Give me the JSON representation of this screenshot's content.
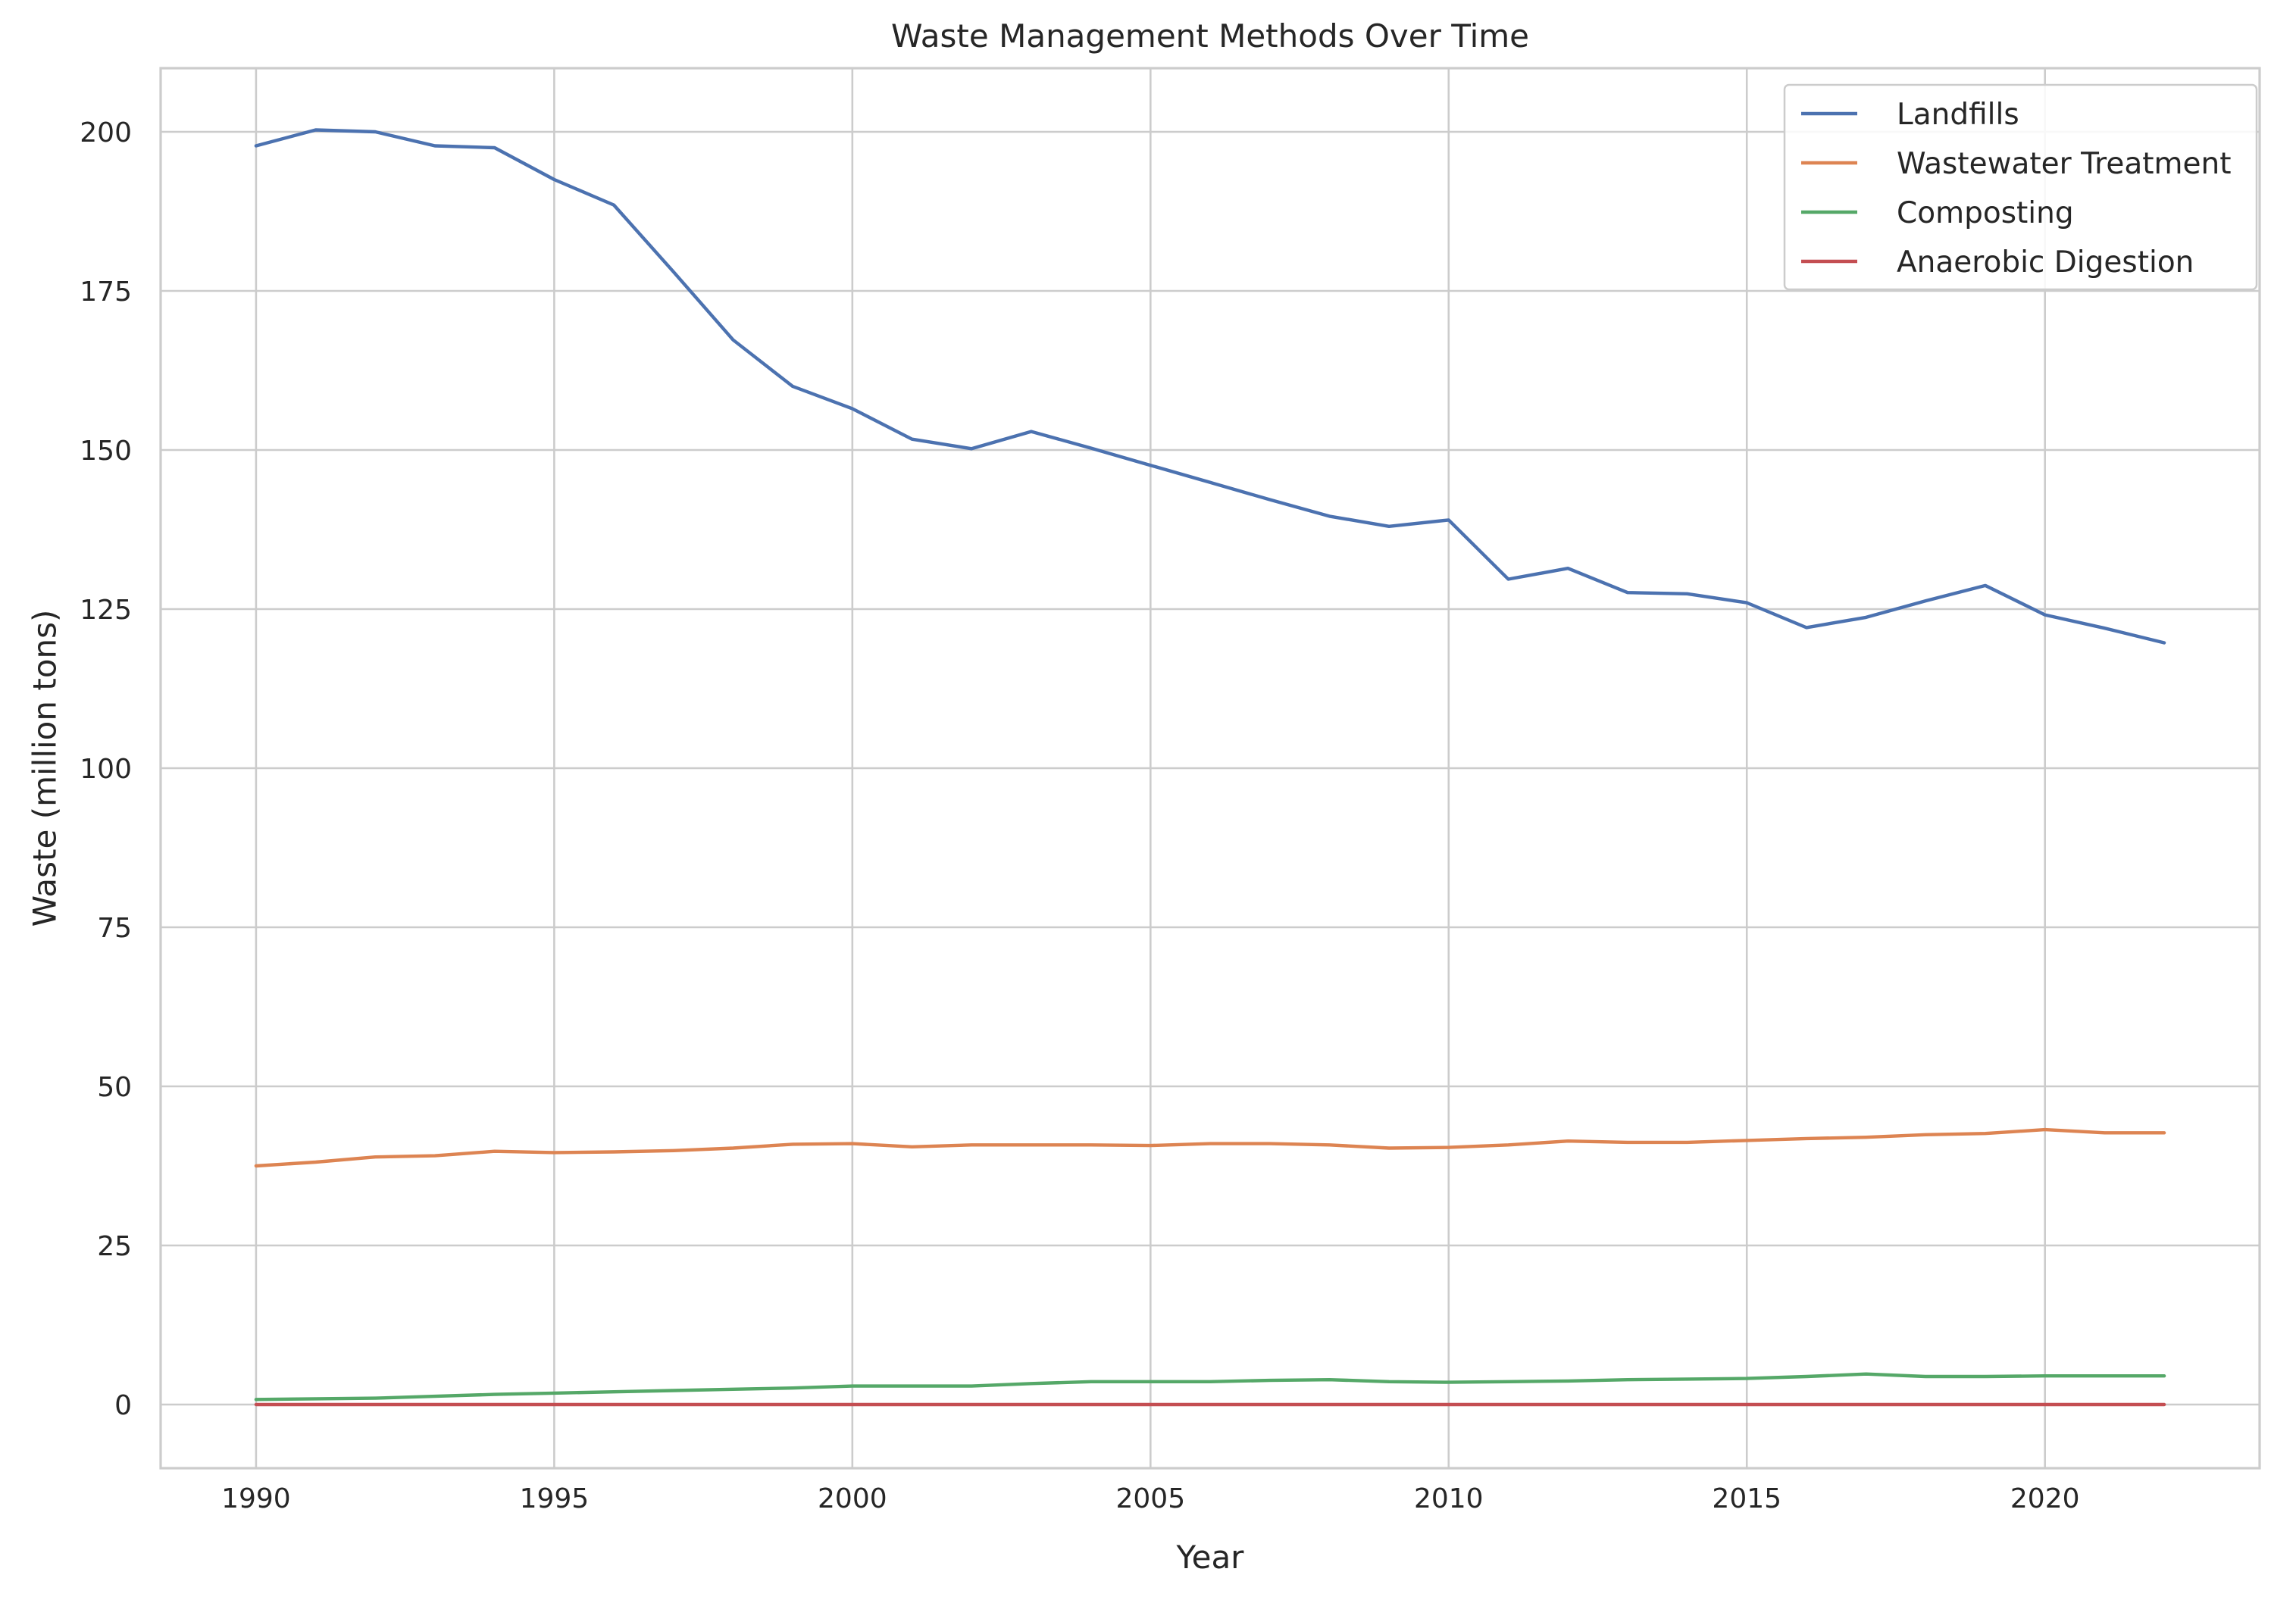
{
  "chart_data": {
    "type": "line",
    "title": "Waste Management Methods Over Time",
    "xlabel": "Year",
    "ylabel": "Waste (million tons)",
    "xlim": [
      1988.4,
      2023.6
    ],
    "ylim": [
      -10,
      210
    ],
    "xticks": [
      1990,
      1995,
      2000,
      2005,
      2010,
      2015,
      2020
    ],
    "yticks": [
      0,
      25,
      50,
      75,
      100,
      125,
      150,
      175,
      200
    ],
    "grid": true,
    "legend_position": "top-right",
    "x": [
      1990,
      1991,
      1992,
      1993,
      1994,
      1995,
      1996,
      1997,
      1998,
      1999,
      2000,
      2001,
      2002,
      2003,
      2004,
      2005,
      2006,
      2007,
      2008,
      2009,
      2010,
      2011,
      2012,
      2013,
      2014,
      2015,
      2016,
      2017,
      2018,
      2019,
      2020,
      2021,
      2022
    ],
    "series": [
      {
        "name": "Landfills",
        "color": "#4c72b0",
        "values": [
          197.8,
          200.3,
          200.0,
          197.8,
          197.5,
          192.5,
          188.5,
          178.0,
          167.3,
          160.0,
          156.5,
          151.7,
          150.2,
          152.9,
          150.3,
          147.6,
          144.9,
          142.2,
          139.6,
          138.0,
          139.0,
          129.7,
          131.4,
          127.6,
          127.4,
          126.0,
          122.1,
          123.7,
          126.3,
          128.7,
          124.1,
          122.0,
          119.7
        ]
      },
      {
        "name": "Wastewater Treatment",
        "color": "#dd8452",
        "values": [
          37.5,
          38.1,
          38.9,
          39.1,
          39.8,
          39.6,
          39.7,
          39.9,
          40.3,
          40.9,
          41.0,
          40.5,
          40.8,
          40.8,
          40.8,
          40.7,
          41.0,
          41.0,
          40.8,
          40.3,
          40.4,
          40.8,
          41.4,
          41.2,
          41.2,
          41.5,
          41.8,
          42.0,
          42.4,
          42.6,
          43.2,
          42.7,
          42.7
        ]
      },
      {
        "name": "Composting",
        "color": "#55a868",
        "values": [
          0.8,
          0.9,
          1.0,
          1.3,
          1.6,
          1.8,
          2.0,
          2.2,
          2.4,
          2.6,
          2.9,
          2.9,
          2.9,
          3.3,
          3.6,
          3.6,
          3.6,
          3.8,
          3.9,
          3.6,
          3.5,
          3.6,
          3.7,
          3.9,
          4.0,
          4.1,
          4.4,
          4.8,
          4.4,
          4.4,
          4.5,
          4.5,
          4.5
        ]
      },
      {
        "name": "Anaerobic Digestion",
        "color": "#c44e52",
        "values": [
          0.0,
          0.0,
          0.0,
          0.0,
          0.0,
          0.0,
          0.0,
          0.0,
          0.0,
          0.0,
          0.0,
          0.0,
          0.0,
          0.0,
          0.0,
          0.0,
          0.0,
          0.0,
          0.0,
          0.0,
          0.0,
          0.0,
          0.0,
          0.0,
          0.0,
          0.0,
          0.0,
          0.0,
          0.0,
          0.0,
          0.0,
          0.0,
          0.0
        ]
      }
    ]
  }
}
